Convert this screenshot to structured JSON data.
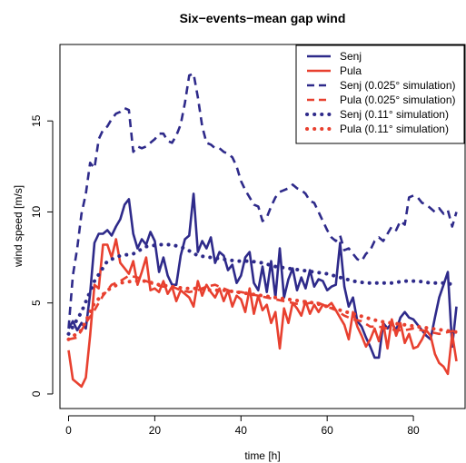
{
  "chart_data": {
    "type": "line",
    "title": "Six−events−mean gap wind",
    "xlabel": "time [h]",
    "ylabel": "wind speed [m/s]",
    "xlim": [
      -2,
      92
    ],
    "ylim": [
      -0.8,
      19.2
    ],
    "xticks": [
      0,
      20,
      40,
      60,
      80
    ],
    "yticks": [
      0,
      5,
      10,
      15
    ],
    "grid": false,
    "legend_position": "top-right",
    "colors": {
      "senj": "#2e2a8a",
      "pula": "#e8402f"
    },
    "series": [
      {
        "name": "Senj",
        "color": "#2e2a8a",
        "style": "solid",
        "x": [
          0,
          1,
          2,
          3,
          4,
          5,
          6,
          7,
          8,
          9,
          10,
          11,
          12,
          13,
          14,
          15,
          16,
          17,
          18,
          19,
          20,
          21,
          22,
          23,
          24,
          25,
          26,
          27,
          28,
          29,
          30,
          31,
          32,
          33,
          34,
          35,
          36,
          37,
          38,
          39,
          40,
          41,
          42,
          43,
          44,
          45,
          46,
          47,
          48,
          49,
          50,
          51,
          52,
          53,
          54,
          55,
          56,
          57,
          58,
          59,
          60,
          61,
          62,
          63,
          64,
          65,
          66,
          67,
          68,
          69,
          70,
          71,
          72,
          73,
          74,
          75,
          76,
          77,
          78,
          79,
          80,
          81,
          82,
          83,
          84,
          85,
          86,
          87,
          88,
          89,
          90
        ],
        "y": [
          3.6,
          4.0,
          3.5,
          3.9,
          3.6,
          5.5,
          8.3,
          8.8,
          8.8,
          9.0,
          8.7,
          9.2,
          9.6,
          10.4,
          10.7,
          8.8,
          8.0,
          8.5,
          8.2,
          8.9,
          8.4,
          6.7,
          7.5,
          6.5,
          6.0,
          6.0,
          7.6,
          8.5,
          8.7,
          11.0,
          7.8,
          8.4,
          8.0,
          8.6,
          7.2,
          7.8,
          7.6,
          6.8,
          7.1,
          6.1,
          6.5,
          7.5,
          7.8,
          6.1,
          5.7,
          7.0,
          5.6,
          7.3,
          5.3,
          8.0,
          5.3,
          6.3,
          6.9,
          5.7,
          6.4,
          5.8,
          6.8,
          5.9,
          6.3,
          6.2,
          5.7,
          5.9,
          6.0,
          8.3,
          5.9,
          4.8,
          5.3,
          4.0,
          3.7,
          3.1,
          2.6,
          2.0,
          2.0,
          3.9,
          3.6,
          3.9,
          3.5,
          4.2,
          4.5,
          4.2,
          4.1,
          3.8,
          3.5,
          3.2,
          3.0,
          4.2,
          5.3,
          6.0,
          6.7,
          2.6,
          4.8
        ]
      },
      {
        "name": "Pula",
        "color": "#e8402f",
        "style": "solid",
        "x": [
          0,
          1,
          2,
          3,
          4,
          5,
          6,
          7,
          8,
          9,
          10,
          11,
          12,
          13,
          14,
          15,
          16,
          17,
          18,
          19,
          20,
          21,
          22,
          23,
          24,
          25,
          26,
          27,
          28,
          29,
          30,
          31,
          32,
          33,
          34,
          35,
          36,
          37,
          38,
          39,
          40,
          41,
          42,
          43,
          44,
          45,
          46,
          47,
          48,
          49,
          50,
          51,
          52,
          53,
          54,
          55,
          56,
          57,
          58,
          59,
          60,
          61,
          62,
          63,
          64,
          65,
          66,
          67,
          68,
          69,
          70,
          71,
          72,
          73,
          74,
          75,
          76,
          77,
          78,
          79,
          80,
          81,
          82,
          83,
          84,
          85,
          86,
          87,
          88,
          89,
          90
        ],
        "y": [
          2.4,
          0.8,
          0.6,
          0.4,
          0.9,
          3.2,
          6.0,
          5.8,
          8.2,
          8.2,
          7.5,
          8.5,
          7.2,
          6.9,
          6.6,
          7.3,
          6.0,
          6.7,
          7.5,
          5.7,
          5.8,
          5.6,
          6.2,
          5.5,
          5.9,
          5.1,
          5.7,
          5.5,
          5.3,
          4.8,
          6.2,
          5.4,
          6.0,
          5.6,
          5.3,
          5.8,
          5.1,
          5.7,
          4.8,
          5.4,
          5.2,
          4.5,
          5.8,
          4.4,
          5.4,
          4.6,
          4.9,
          3.9,
          4.5,
          2.5,
          4.7,
          3.9,
          5.0,
          4.7,
          4.3,
          5.1,
          4.4,
          4.9,
          4.5,
          4.9,
          4.8,
          5.0,
          4.6,
          4.2,
          3.8,
          3.0,
          4.5,
          3.7,
          3.2,
          2.6,
          3.0,
          3.6,
          2.9,
          3.9,
          2.5,
          4.1,
          3.2,
          3.9,
          2.8,
          3.3,
          2.5,
          2.6,
          3.0,
          3.5,
          3.2,
          2.2,
          1.7,
          1.5,
          1.1,
          3.3,
          1.8
        ]
      },
      {
        "name": "Senj (0.025° simulation)",
        "color": "#2e2a8a",
        "style": "dashed",
        "x": [
          0,
          1,
          2,
          3,
          4,
          5,
          6,
          7,
          8,
          9,
          10,
          11,
          12,
          13,
          14,
          15,
          16,
          17,
          18,
          19,
          20,
          21,
          22,
          23,
          24,
          25,
          26,
          27,
          28,
          29,
          30,
          31,
          32,
          33,
          34,
          35,
          36,
          37,
          38,
          39,
          40,
          41,
          42,
          43,
          44,
          45,
          46,
          47,
          48,
          49,
          50,
          51,
          52,
          53,
          54,
          55,
          56,
          57,
          58,
          59,
          60,
          61,
          62,
          63,
          64,
          65,
          66,
          67,
          68,
          69,
          70,
          71,
          72,
          73,
          74,
          75,
          76,
          77,
          78,
          79,
          80,
          81,
          82,
          83,
          84,
          85,
          86,
          87,
          88,
          89,
          90
        ],
        "y": [
          3.6,
          6.5,
          8.0,
          9.9,
          11.0,
          12.7,
          12.4,
          14.0,
          14.5,
          14.7,
          15.1,
          15.4,
          15.5,
          15.7,
          15.6,
          13.3,
          13.6,
          13.5,
          13.6,
          13.8,
          14.0,
          14.3,
          14.3,
          13.9,
          13.8,
          14.2,
          14.8,
          16.0,
          17.5,
          17.6,
          16.3,
          14.7,
          13.8,
          13.7,
          13.5,
          13.5,
          13.3,
          13.2,
          13.0,
          12.5,
          11.7,
          11.2,
          10.8,
          10.4,
          10.3,
          9.5,
          9.7,
          10.3,
          10.8,
          11.1,
          11.2,
          11.3,
          11.5,
          11.3,
          11.2,
          11.0,
          10.6,
          10.5,
          10.0,
          9.5,
          9.0,
          8.6,
          8.4,
          8.7,
          7.9,
          8.0,
          7.7,
          7.4,
          7.3,
          7.7,
          7.9,
          8.4,
          8.6,
          8.4,
          8.8,
          9.2,
          9.0,
          9.5,
          9.3,
          10.8,
          10.9,
          10.8,
          10.5,
          10.4,
          10.2,
          10.0,
          10.2,
          9.9,
          10.1,
          9.2,
          10.0
        ]
      },
      {
        "name": "Pula (0.025° simulation)",
        "color": "#e8402f",
        "style": "dashed",
        "x": [
          0,
          2,
          4,
          6,
          8,
          10,
          12,
          14,
          16,
          18,
          20,
          22,
          24,
          26,
          28,
          30,
          32,
          34,
          36,
          38,
          40,
          42,
          44,
          46,
          48,
          50,
          52,
          54,
          56,
          58,
          60,
          62,
          64,
          66,
          68,
          70,
          72,
          74,
          76,
          78,
          80,
          82,
          84,
          86,
          88,
          90
        ],
        "y": [
          3.0,
          3.1,
          3.9,
          4.6,
          5.4,
          6.0,
          6.2,
          6.5,
          6.4,
          6.2,
          6.0,
          5.9,
          5.9,
          5.7,
          5.6,
          5.7,
          5.9,
          6.0,
          5.8,
          5.6,
          5.6,
          5.5,
          5.4,
          5.3,
          5.2,
          5.1,
          5.0,
          4.9,
          5.0,
          5.0,
          4.8,
          4.6,
          4.3,
          4.1,
          4.0,
          3.7,
          3.7,
          3.6,
          3.5,
          3.5,
          3.6,
          3.5,
          3.4,
          3.3,
          3.4,
          3.5
        ]
      },
      {
        "name": "Senj (0.11° simulation)",
        "color": "#2e2a8a",
        "style": "dotted",
        "x": [
          0,
          3,
          6,
          9,
          12,
          15,
          18,
          21,
          24,
          27,
          30,
          33,
          36,
          39,
          42,
          45,
          48,
          51,
          54,
          57,
          60,
          63,
          66,
          69,
          72,
          75,
          78,
          81,
          84,
          87,
          90
        ],
        "y": [
          3.3,
          4.5,
          6.2,
          7.3,
          7.6,
          7.7,
          8.1,
          8.2,
          8.2,
          8.0,
          7.6,
          7.5,
          7.4,
          7.3,
          7.3,
          7.2,
          7.0,
          6.9,
          6.8,
          6.7,
          6.6,
          6.4,
          6.2,
          6.1,
          6.1,
          6.1,
          6.2,
          6.2,
          6.1,
          6.1,
          6.0
        ]
      },
      {
        "name": "Pula (0.11° simulation)",
        "color": "#e8402f",
        "style": "dotted",
        "x": [
          0,
          3,
          6,
          9,
          12,
          15,
          18,
          21,
          24,
          27,
          30,
          33,
          36,
          39,
          42,
          45,
          48,
          51,
          54,
          57,
          60,
          63,
          66,
          69,
          72,
          75,
          78,
          81,
          84,
          87,
          90
        ],
        "y": [
          3.0,
          3.5,
          5.0,
          5.7,
          6.1,
          6.2,
          6.2,
          6.0,
          5.9,
          5.8,
          5.8,
          5.7,
          5.7,
          5.6,
          5.5,
          5.4,
          5.3,
          5.2,
          5.1,
          5.0,
          4.8,
          4.6,
          4.4,
          4.2,
          4.0,
          3.9,
          3.8,
          3.7,
          3.6,
          3.5,
          3.4
        ]
      }
    ]
  }
}
